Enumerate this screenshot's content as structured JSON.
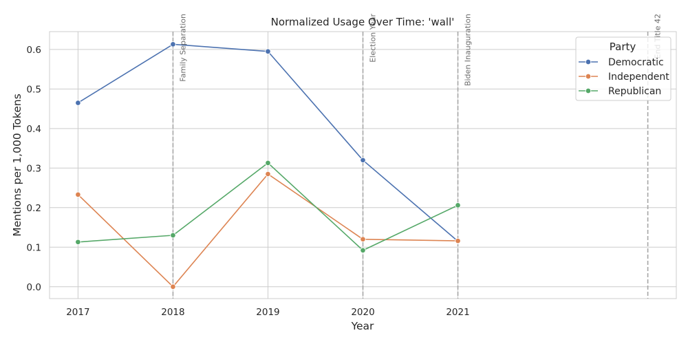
{
  "chart_data": {
    "type": "line",
    "title": "Normalized Usage Over Time: 'wall'",
    "xlabel": "Year",
    "ylabel": "Mentions per 1,000 Tokens",
    "x": [
      2017,
      2018,
      2019,
      2020,
      2021
    ],
    "x_ticks": [
      2017,
      2018,
      2019,
      2020,
      2021
    ],
    "xlim": [
      2016.7,
      2023.3
    ],
    "y_ticks": [
      "0.0",
      "0.1",
      "0.2",
      "0.3",
      "0.4",
      "0.5",
      "0.6"
    ],
    "ylim": [
      -0.03,
      0.645
    ],
    "grid": true,
    "legend": {
      "title": "Party",
      "placement": "top-right"
    },
    "series": [
      {
        "name": "Democratic",
        "color": "#4c72b0",
        "values": [
          0.465,
          0.613,
          0.595,
          0.32,
          0.115
        ]
      },
      {
        "name": "Independent",
        "color": "#dd8452",
        "values": [
          0.233,
          0.0,
          0.285,
          0.12,
          0.116
        ]
      },
      {
        "name": "Republican",
        "color": "#55a868",
        "values": [
          0.113,
          0.13,
          0.313,
          0.092,
          0.206
        ]
      }
    ],
    "annotations": [
      {
        "x": 2018,
        "label": "Family Separation"
      },
      {
        "x": 2020,
        "label": "Election Year"
      },
      {
        "x": 2021,
        "label": "Biden Inauguration"
      },
      {
        "x": 2023,
        "label": "End Title 42"
      }
    ]
  }
}
